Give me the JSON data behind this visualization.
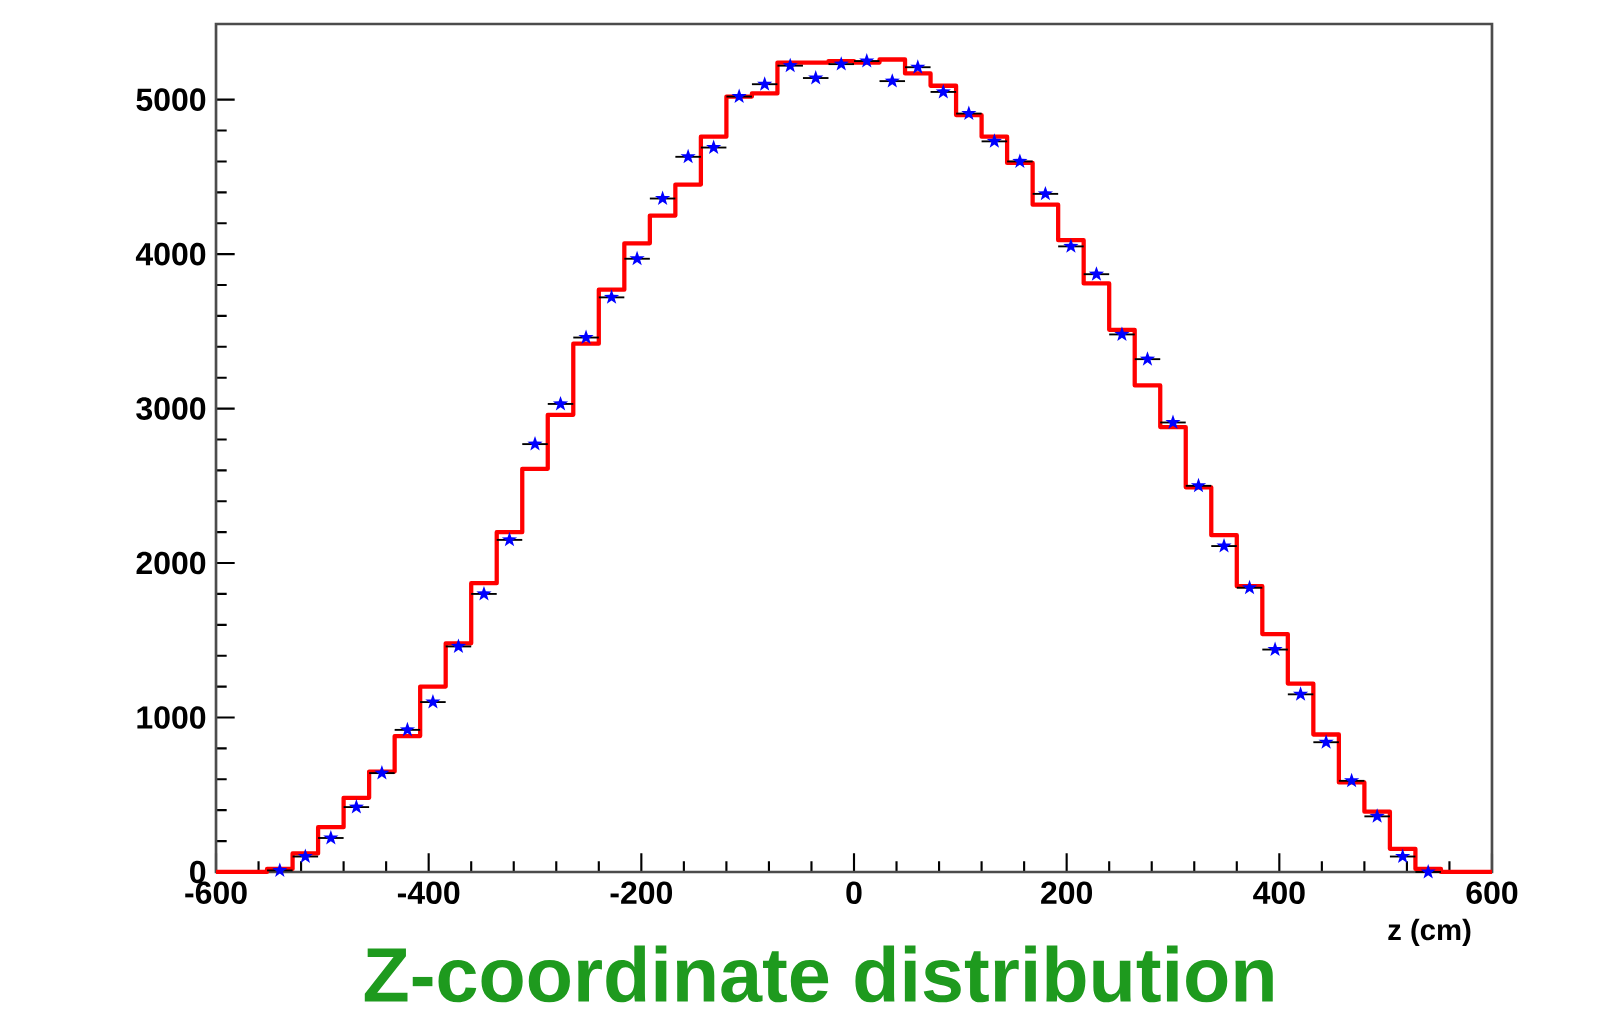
{
  "chart_data": {
    "type": "histogram",
    "title": "Z-coordinate distribution",
    "xlabel": "z (cm)",
    "bins": [
      -600,
      -576,
      -552,
      -528,
      -504,
      -480,
      -456,
      -432,
      -408,
      -384,
      -360,
      -336,
      -312,
      -288,
      -264,
      -240,
      -216,
      -192,
      -168,
      -144,
      -120,
      -96,
      -72,
      -48,
      -24,
      0,
      24,
      48,
      72,
      96,
      120,
      144,
      168,
      192,
      216,
      240,
      264,
      288,
      312,
      336,
      360,
      384,
      408,
      432,
      456,
      480,
      504,
      528,
      552,
      576,
      600
    ],
    "series": [
      {
        "type": "histogram",
        "color": "#ff0000",
        "values": [
          0,
          0,
          20,
          120,
          290,
          480,
          650,
          880,
          1200,
          1480,
          1870,
          2200,
          2610,
          2960,
          3420,
          3770,
          4070,
          4250,
          4450,
          4760,
          5020,
          5040,
          5240,
          5240,
          5250,
          5240,
          5260,
          5170,
          5090,
          4900,
          4760,
          4590,
          4320,
          4090,
          3810,
          3510,
          3150,
          2880,
          2490,
          2180,
          1850,
          1540,
          1220,
          890,
          580,
          390,
          150,
          20,
          0,
          0
        ]
      },
      {
        "type": "scatter",
        "color": "#0000ff",
        "marker": "star",
        "x": [
          -540,
          -516,
          -492,
          -468,
          -444,
          -420,
          -396,
          -372,
          -348,
          -324,
          -300,
          -276,
          -252,
          -228,
          -204,
          -180,
          -156,
          -132,
          -108,
          -84,
          -60,
          -36,
          -12,
          12,
          36,
          60,
          84,
          108,
          132,
          156,
          180,
          204,
          228,
          252,
          276,
          300,
          324,
          348,
          372,
          396,
          420,
          444,
          468,
          492,
          516,
          540
        ],
        "values": [
          10,
          100,
          220,
          420,
          640,
          920,
          1100,
          1460,
          1800,
          2150,
          2770,
          3030,
          3460,
          3720,
          3970,
          4360,
          4630,
          4690,
          5020,
          5100,
          5220,
          5140,
          5230,
          5250,
          5120,
          5210,
          5050,
          4910,
          4730,
          4600,
          4390,
          4050,
          3870,
          3480,
          3320,
          2910,
          2500,
          2110,
          1840,
          1440,
          1150,
          840,
          590,
          360,
          100,
          0
        ],
        "xerrors": [
          12,
          12,
          12,
          12,
          12,
          12,
          12,
          12,
          12,
          12,
          12,
          12,
          12,
          12,
          12,
          12,
          12,
          12,
          12,
          12,
          12,
          12,
          12,
          12,
          12,
          12,
          12,
          12,
          12,
          12,
          12,
          12,
          12,
          12,
          12,
          12,
          12,
          12,
          12,
          12,
          12,
          12,
          12,
          12,
          12,
          12
        ]
      }
    ],
    "xlim": [
      -600,
      600
    ],
    "ylim": [
      0,
      5490
    ],
    "xticks": [
      -600,
      -400,
      -200,
      0,
      200,
      400,
      600
    ],
    "yticks": [
      0,
      1000,
      2000,
      3000,
      4000,
      5000
    ]
  }
}
